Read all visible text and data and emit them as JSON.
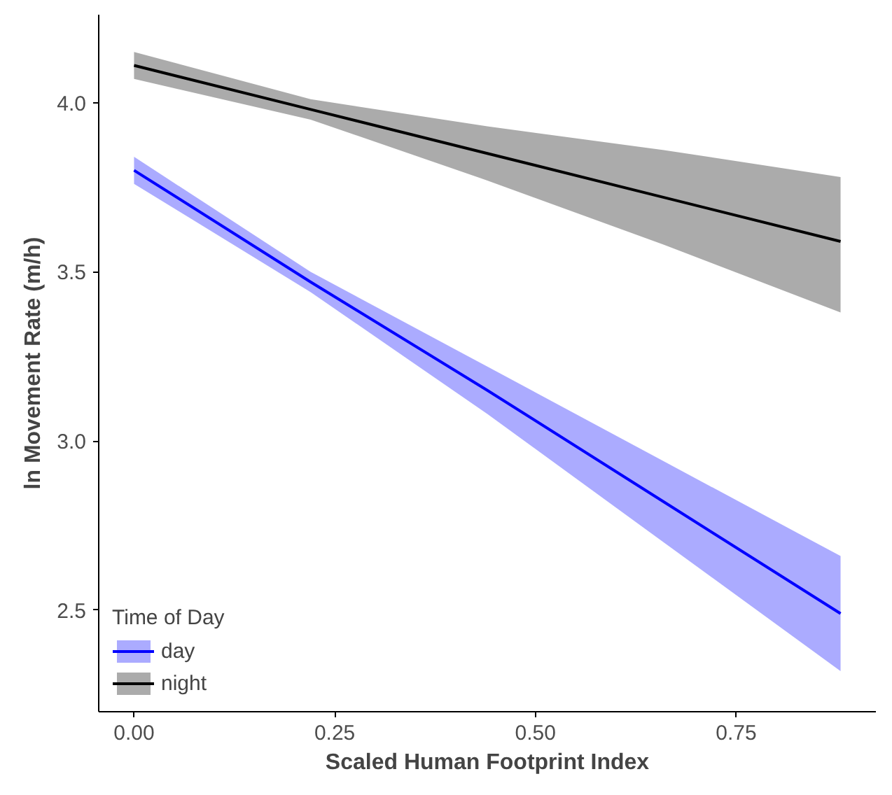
{
  "chart_data": {
    "type": "line",
    "xlabel": "Scaled Human Footprint Index",
    "ylabel": "ln Movement Rate (m/h)",
    "legend_title": "Time of Day",
    "legend": "bottom left",
    "grid": false,
    "x": [
      0,
      0.22,
      0.44,
      0.66,
      0.88
    ],
    "xlim": [
      -0.044,
      0.924
    ],
    "ylim": [
      2.2,
      4.26
    ],
    "xticks": [
      {
        "value": 0,
        "label": "0.00"
      },
      {
        "value": 0.25,
        "label": "0.25"
      },
      {
        "value": 0.5,
        "label": "0.50"
      },
      {
        "value": 0.75,
        "label": "0.75"
      }
    ],
    "yticks": [
      {
        "value": 2.5,
        "label": "2.5"
      },
      {
        "value": 3,
        "label": "3.0"
      },
      {
        "value": 3.5,
        "label": "3.5"
      },
      {
        "value": 4,
        "label": "4.0"
      }
    ],
    "series": [
      {
        "name": "day",
        "color": "#0000ff",
        "values": [
          3.8,
          3.47,
          3.15,
          2.82,
          2.49
        ],
        "lower": [
          3.76,
          3.44,
          3.08,
          2.7,
          2.32
        ],
        "upper": [
          3.84,
          3.5,
          3.22,
          2.94,
          2.66
        ]
      },
      {
        "name": "night",
        "color": "#000000",
        "values": [
          4.11,
          3.98,
          3.85,
          3.72,
          3.59
        ],
        "lower": [
          4.07,
          3.95,
          3.77,
          3.58,
          3.38
        ],
        "upper": [
          4.15,
          4.01,
          3.93,
          3.86,
          3.78
        ]
      }
    ]
  }
}
